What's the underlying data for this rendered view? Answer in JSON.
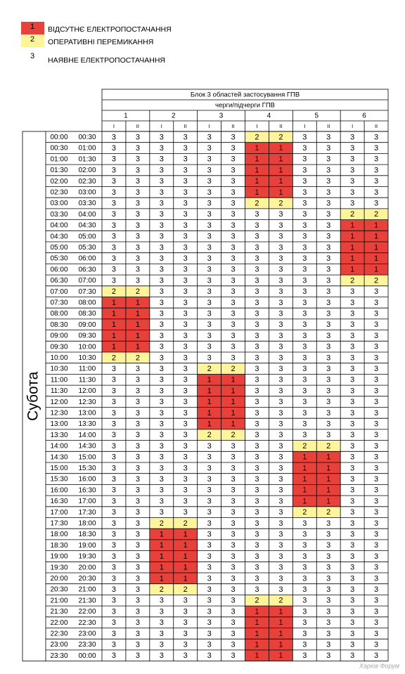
{
  "legend": [
    {
      "code": 1,
      "label": "ВІДСУТНЄ ЕЛЕКТРОПОСТАЧАННЯ"
    },
    {
      "code": 2,
      "label": "ОПЕРАТИВНІ ПЕРЕМИКАННЯ"
    },
    {
      "code": 3,
      "label": "НАЯВНЕ ЕЛЕКТРОПОСТАЧАННЯ"
    }
  ],
  "header": {
    "title": "Блок 3 областей застосування ГПВ",
    "subtitle": "черги/підчерги ГПВ",
    "groups": [
      1,
      2,
      3,
      4,
      5,
      6
    ],
    "subgroups": [
      "I",
      "II"
    ]
  },
  "day": "Субота",
  "table": {
    "rows": [
      [
        "00:00",
        "00:30",
        3,
        3,
        3,
        3,
        3,
        3,
        2,
        2,
        3,
        3,
        3,
        3
      ],
      [
        "00:30",
        "01:00",
        3,
        3,
        3,
        3,
        3,
        3,
        1,
        1,
        3,
        3,
        3,
        3
      ],
      [
        "01:00",
        "01:30",
        3,
        3,
        3,
        3,
        3,
        3,
        1,
        1,
        3,
        3,
        3,
        3
      ],
      [
        "01:30",
        "02:00",
        3,
        3,
        3,
        3,
        3,
        3,
        1,
        1,
        3,
        3,
        3,
        3
      ],
      [
        "02:00",
        "02:30",
        3,
        3,
        3,
        3,
        3,
        3,
        1,
        1,
        3,
        3,
        3,
        3
      ],
      [
        "02:30",
        "03:00",
        3,
        3,
        3,
        3,
        3,
        3,
        1,
        1,
        3,
        3,
        3,
        3
      ],
      [
        "03:00",
        "03:30",
        3,
        3,
        3,
        3,
        3,
        3,
        2,
        2,
        3,
        3,
        3,
        3
      ],
      [
        "03:30",
        "04:00",
        3,
        3,
        3,
        3,
        3,
        3,
        3,
        3,
        3,
        3,
        2,
        2
      ],
      [
        "04:00",
        "04:30",
        3,
        3,
        3,
        3,
        3,
        3,
        3,
        3,
        3,
        3,
        1,
        1
      ],
      [
        "04:30",
        "05:00",
        3,
        3,
        3,
        3,
        3,
        3,
        3,
        3,
        3,
        3,
        1,
        1
      ],
      [
        "05:00",
        "05:30",
        3,
        3,
        3,
        3,
        3,
        3,
        3,
        3,
        3,
        3,
        1,
        1
      ],
      [
        "05:30",
        "06:00",
        3,
        3,
        3,
        3,
        3,
        3,
        3,
        3,
        3,
        3,
        1,
        1
      ],
      [
        "06:00",
        "06:30",
        3,
        3,
        3,
        3,
        3,
        3,
        3,
        3,
        3,
        3,
        1,
        1
      ],
      [
        "06:30",
        "07:00",
        3,
        3,
        3,
        3,
        3,
        3,
        3,
        3,
        3,
        3,
        2,
        2
      ],
      [
        "07:00",
        "07:30",
        2,
        2,
        3,
        3,
        3,
        3,
        3,
        3,
        3,
        3,
        3,
        3
      ],
      [
        "07:30",
        "08:00",
        1,
        1,
        3,
        3,
        3,
        3,
        3,
        3,
        3,
        3,
        3,
        3
      ],
      [
        "08:00",
        "08:30",
        1,
        1,
        3,
        3,
        3,
        3,
        3,
        3,
        3,
        3,
        3,
        3
      ],
      [
        "08:30",
        "09:00",
        1,
        1,
        3,
        3,
        3,
        3,
        3,
        3,
        3,
        3,
        3,
        3
      ],
      [
        "09:00",
        "09:30",
        1,
        1,
        3,
        3,
        3,
        3,
        3,
        3,
        3,
        3,
        3,
        3
      ],
      [
        "09:30",
        "10:00",
        1,
        1,
        3,
        3,
        3,
        3,
        3,
        3,
        3,
        3,
        3,
        3
      ],
      [
        "10:00",
        "10:30",
        2,
        2,
        3,
        3,
        3,
        3,
        3,
        3,
        3,
        3,
        3,
        3
      ],
      [
        "10:30",
        "11:00",
        3,
        3,
        3,
        3,
        2,
        2,
        3,
        3,
        3,
        3,
        3,
        3
      ],
      [
        "11:00",
        "11:30",
        3,
        3,
        3,
        3,
        1,
        1,
        3,
        3,
        3,
        3,
        3,
        3
      ],
      [
        "11:30",
        "12:00",
        3,
        3,
        3,
        3,
        1,
        1,
        3,
        3,
        3,
        3,
        3,
        3
      ],
      [
        "12:00",
        "12:30",
        3,
        3,
        3,
        3,
        1,
        1,
        3,
        3,
        3,
        3,
        3,
        3
      ],
      [
        "12:30",
        "13:00",
        3,
        3,
        3,
        3,
        1,
        1,
        3,
        3,
        3,
        3,
        3,
        3
      ],
      [
        "13:00",
        "13:30",
        3,
        3,
        3,
        3,
        1,
        1,
        3,
        3,
        3,
        3,
        3,
        3
      ],
      [
        "13:30",
        "14:00",
        3,
        3,
        3,
        3,
        2,
        2,
        3,
        3,
        3,
        3,
        3,
        3
      ],
      [
        "14:00",
        "14:30",
        3,
        3,
        3,
        3,
        3,
        3,
        3,
        3,
        2,
        2,
        3,
        3
      ],
      [
        "14:30",
        "15:00",
        3,
        3,
        3,
        3,
        3,
        3,
        3,
        3,
        1,
        1,
        3,
        3
      ],
      [
        "15:00",
        "15:30",
        3,
        3,
        3,
        3,
        3,
        3,
        3,
        3,
        1,
        1,
        3,
        3
      ],
      [
        "15:30",
        "16:00",
        3,
        3,
        3,
        3,
        3,
        3,
        3,
        3,
        1,
        1,
        3,
        3
      ],
      [
        "16:00",
        "16:30",
        3,
        3,
        3,
        3,
        3,
        3,
        3,
        3,
        1,
        1,
        3,
        3
      ],
      [
        "16:30",
        "17:00",
        3,
        3,
        3,
        3,
        3,
        3,
        3,
        3,
        1,
        1,
        3,
        3
      ],
      [
        "17:00",
        "17:30",
        3,
        3,
        3,
        3,
        3,
        3,
        3,
        3,
        2,
        2,
        3,
        3
      ],
      [
        "17:30",
        "18:00",
        3,
        3,
        2,
        2,
        3,
        3,
        3,
        3,
        3,
        3,
        3,
        3
      ],
      [
        "18:00",
        "18:30",
        3,
        3,
        1,
        1,
        3,
        3,
        3,
        3,
        3,
        3,
        3,
        3
      ],
      [
        "18:30",
        "19:00",
        3,
        3,
        1,
        1,
        3,
        3,
        3,
        3,
        3,
        3,
        3,
        3
      ],
      [
        "19:00",
        "19:30",
        3,
        3,
        1,
        1,
        3,
        3,
        3,
        3,
        3,
        3,
        3,
        3
      ],
      [
        "19:30",
        "20:00",
        3,
        3,
        1,
        1,
        3,
        3,
        3,
        3,
        3,
        3,
        3,
        3
      ],
      [
        "20:00",
        "20:30",
        3,
        3,
        1,
        1,
        3,
        3,
        3,
        3,
        3,
        3,
        3,
        3
      ],
      [
        "20:30",
        "21:00",
        3,
        3,
        2,
        2,
        3,
        3,
        3,
        3,
        3,
        3,
        3,
        3
      ],
      [
        "21:00",
        "21:30",
        3,
        3,
        3,
        3,
        3,
        3,
        2,
        2,
        3,
        3,
        3,
        3
      ],
      [
        "21:30",
        "22:00",
        3,
        3,
        3,
        3,
        3,
        3,
        1,
        1,
        3,
        3,
        3,
        3
      ],
      [
        "22:00",
        "22:30",
        3,
        3,
        3,
        3,
        3,
        3,
        1,
        1,
        3,
        3,
        3,
        3
      ],
      [
        "22:30",
        "23:00",
        3,
        3,
        3,
        3,
        3,
        3,
        1,
        1,
        3,
        3,
        3,
        3
      ],
      [
        "23:00",
        "23:30",
        3,
        3,
        3,
        3,
        3,
        3,
        1,
        1,
        3,
        3,
        3,
        3
      ],
      [
        "23:30",
        "00:00",
        3,
        3,
        3,
        3,
        3,
        3,
        1,
        1,
        3,
        3,
        3,
        3
      ]
    ]
  },
  "watermark": "Харків Форум"
}
